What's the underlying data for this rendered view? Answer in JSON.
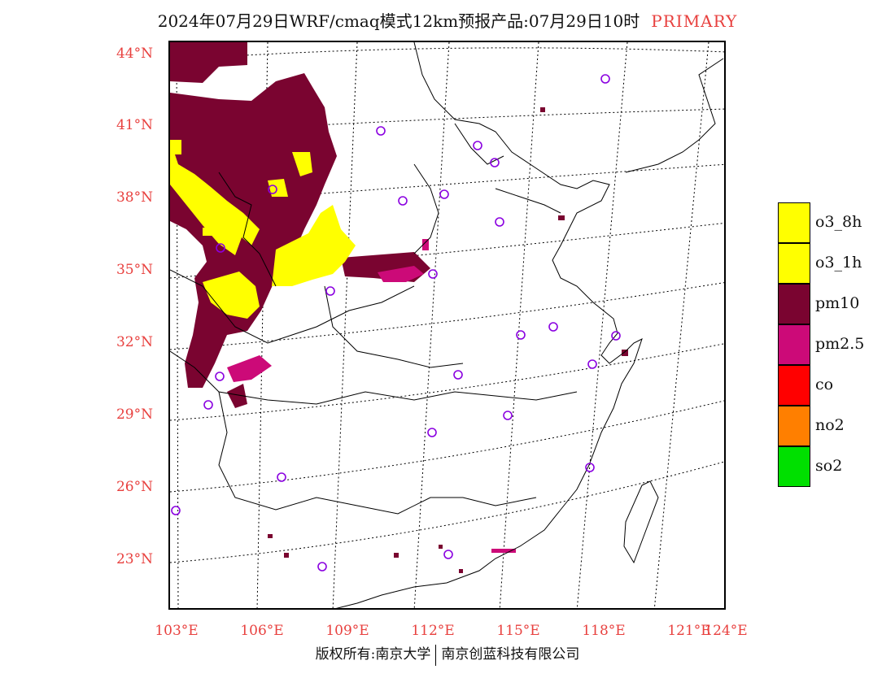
{
  "title": {
    "main": "2024年07月29日WRF/cmaq模式12km预报产品:07月29日10时",
    "tag": "PRIMARY"
  },
  "axes": {
    "lat_labels": [
      "44°N",
      "41°N",
      "38°N",
      "35°N",
      "32°N",
      "29°N",
      "26°N",
      "23°N"
    ],
    "lon_labels": [
      "103°E",
      "106°E",
      "109°E",
      "112°E",
      "115°E",
      "118°E",
      "121°E",
      "124°E"
    ]
  },
  "legend": {
    "items": [
      {
        "label": "o3_8h",
        "color": "#ffff00"
      },
      {
        "label": "o3_1h",
        "color": "#ffff00"
      },
      {
        "label": "pm10",
        "color": "#7a0430"
      },
      {
        "label": "pm2.5",
        "color": "#cc0a78"
      },
      {
        "label": "co",
        "color": "#ff0000"
      },
      {
        "label": "no2",
        "color": "#ff7f00"
      },
      {
        "label": "so2",
        "color": "#00e000"
      }
    ]
  },
  "colors": {
    "label_red": "#e8413f",
    "station_marker": "#8a00e0"
  },
  "footer": {
    "left": "版权所有:南京大学",
    "right": "南京创蓝科技有限公司"
  }
}
